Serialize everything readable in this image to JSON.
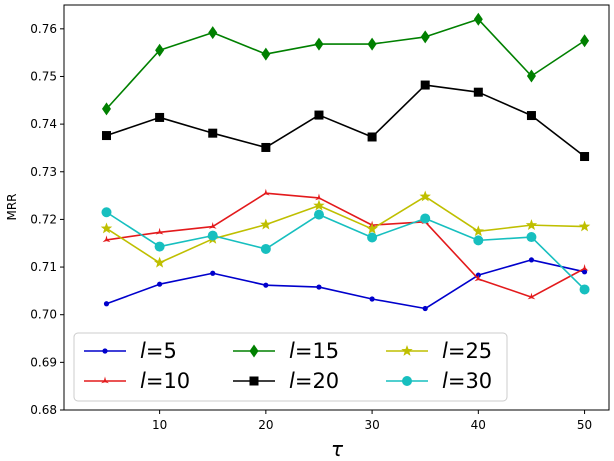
{
  "chart_data": {
    "type": "line",
    "title": "",
    "xlabel": "τ",
    "ylabel": "MRR",
    "x": [
      5,
      10,
      15,
      20,
      25,
      30,
      35,
      40,
      45,
      50
    ],
    "xlim": [
      1,
      52.3
    ],
    "ylim": [
      0.68,
      0.765
    ],
    "xticks": [
      10,
      20,
      30,
      40,
      50
    ],
    "xtick_labels": [
      "10",
      "20",
      "30",
      "40",
      "50"
    ],
    "yticks": [
      0.68,
      0.69,
      0.7,
      0.71,
      0.72,
      0.73,
      0.74,
      0.75,
      0.76
    ],
    "ytick_labels": [
      "0.68",
      "0.69",
      "0.70",
      "0.71",
      "0.72",
      "0.73",
      "0.74",
      "0.75",
      "0.76"
    ],
    "grid": false,
    "legend": {
      "placement": "lower-left",
      "columns": 3,
      "variable": "l",
      "labels": [
        "=5",
        "=15",
        "=25",
        "=10",
        "=20",
        "=30"
      ]
    },
    "series": [
      {
        "name": "l=5",
        "color": "#0000cc",
        "marker": "point",
        "values": [
          0.7023,
          0.7064,
          0.7087,
          0.7062,
          0.7058,
          0.7033,
          0.7013,
          0.7083,
          0.7115,
          0.709
        ]
      },
      {
        "name": "l=10",
        "color": "#e31a1c",
        "marker": "tri_star",
        "values": [
          0.7157,
          0.7173,
          0.7185,
          0.7255,
          0.7245,
          0.7188,
          0.7195,
          0.7075,
          0.7037,
          0.7097
        ]
      },
      {
        "name": "l=15",
        "color": "#008000",
        "marker": "diamond",
        "values": [
          0.7432,
          0.7555,
          0.7592,
          0.7547,
          0.7568,
          0.7568,
          0.7583,
          0.762,
          0.7501,
          0.7575
        ]
      },
      {
        "name": "l=20",
        "color": "#000000",
        "marker": "square",
        "values": [
          0.7376,
          0.7414,
          0.7381,
          0.7351,
          0.7419,
          0.7373,
          0.7482,
          0.7467,
          0.7418,
          0.7332
        ]
      },
      {
        "name": "l=25",
        "color": "#bfbf00",
        "marker": "star",
        "values": [
          0.7181,
          0.7109,
          0.7159,
          0.7189,
          0.7229,
          0.718,
          0.7248,
          0.7175,
          0.7188,
          0.7185
        ]
      },
      {
        "name": "l=30",
        "color": "#17bfbf",
        "marker": "circle",
        "values": [
          0.7215,
          0.7143,
          0.7166,
          0.7138,
          0.721,
          0.7162,
          0.7202,
          0.7156,
          0.7163,
          0.7053
        ]
      }
    ]
  }
}
